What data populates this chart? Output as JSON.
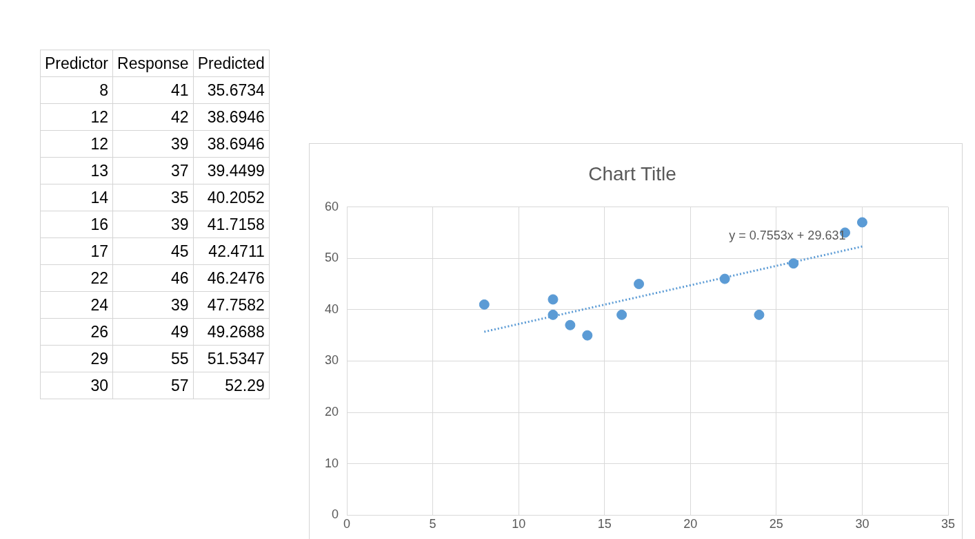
{
  "chart_data": [
    {
      "type": "other",
      "annotations": [
        "Predictor",
        "Response",
        "Predicted",
        "8",
        "41",
        "35.6734",
        "12",
        "42",
        "38.6946",
        "12",
        "39",
        "38.6946",
        "13",
        "37",
        "39.4499",
        "14",
        "35",
        "40.2052",
        "16",
        "39",
        "41.7158",
        "17",
        "45",
        "42.4711",
        "22",
        "46",
        "46.2476",
        "24",
        "39",
        "47.7582",
        "26",
        "49",
        "49.2688",
        "29",
        "55",
        "51.5347",
        "30",
        "57",
        "52.29"
      ]
    },
    {
      "type": "scatter",
      "title": "Chart Title",
      "x": [
        8,
        12,
        12,
        13,
        14,
        16,
        17,
        22,
        24,
        26,
        29,
        30
      ],
      "series": [
        {
          "type": "scatter",
          "color": "#5b9bd5",
          "marker": "circle",
          "values": [
            41,
            42,
            39,
            37,
            35,
            39,
            45,
            46,
            39,
            49,
            55,
            57
          ]
        },
        {
          "type": "line",
          "color": "#5b9bd5",
          "marker": "none",
          "line_style": "dotted",
          "x": [
            8,
            30
          ],
          "values": [
            35.7,
            52.3
          ]
        }
      ],
      "xlim": [
        0,
        35
      ],
      "xticks": [
        0,
        5,
        10,
        15,
        20,
        25,
        30,
        35
      ],
      "ylim": [
        0,
        60
      ],
      "yticks": [
        0,
        10,
        20,
        30,
        40,
        50,
        60
      ],
      "grid": true,
      "legend": false,
      "annotations": [
        "y = 0.7553x + 29.631"
      ]
    }
  ]
}
